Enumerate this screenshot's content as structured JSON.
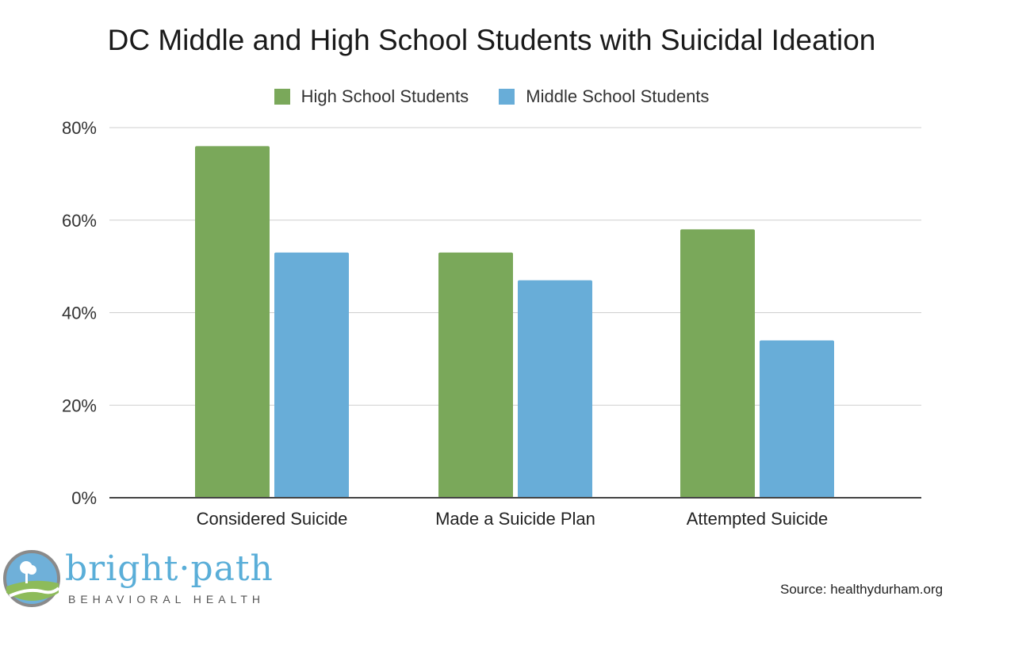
{
  "chart_data": {
    "type": "bar",
    "title": "DC Middle and High School Students with Suicidal Ideation",
    "categories": [
      "Considered Suicide",
      "Made a Suicide Plan",
      "Attempted Suicide"
    ],
    "series": [
      {
        "name": "High School Students",
        "values": [
          76,
          53,
          58
        ],
        "color": "#7aa85a"
      },
      {
        "name": "Middle School Students",
        "values": [
          53,
          47,
          34
        ],
        "color": "#68add8"
      }
    ],
    "y_ticks": [
      "0%",
      "20%",
      "40%",
      "60%",
      "80%"
    ],
    "ylim": [
      0,
      80
    ],
    "grid": true,
    "legend_position": "top-center",
    "xlabel": "",
    "ylabel": ""
  },
  "brand": {
    "wordmark": "bright·path",
    "subtitle": "BEHAVIORAL HEALTH"
  },
  "source": "Source: healthydurham.org"
}
